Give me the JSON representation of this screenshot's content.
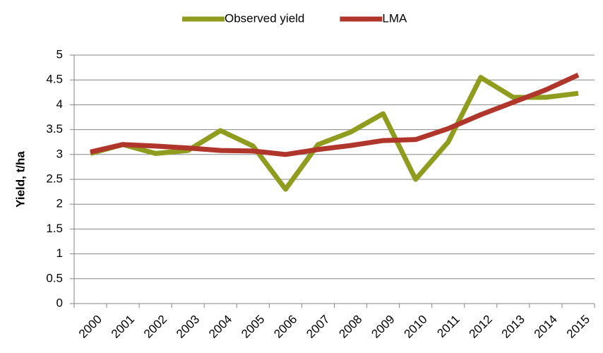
{
  "chart_data": {
    "type": "line",
    "y_label": "Yield, t/ha",
    "categories": [
      "2000",
      "2001",
      "2002",
      "2003",
      "2004",
      "2005",
      "2006",
      "2007",
      "2008",
      "2009",
      "2010",
      "2011",
      "2012",
      "2013",
      "2014",
      "2015"
    ],
    "series": [
      {
        "name": "Observed yield",
        "color": "#8f9c1e",
        "values": [
          3.02,
          3.2,
          3.02,
          3.08,
          3.48,
          3.17,
          2.3,
          3.2,
          3.45,
          3.82,
          2.5,
          3.25,
          4.55,
          4.15,
          4.15,
          4.23
        ]
      },
      {
        "name": "LMA",
        "color": "#b0352a",
        "values": [
          3.05,
          3.2,
          3.17,
          3.13,
          3.08,
          3.07,
          3.0,
          3.1,
          3.18,
          3.28,
          3.3,
          3.52,
          3.8,
          4.05,
          4.3,
          4.6
        ]
      }
    ],
    "ylim": [
      0,
      5
    ],
    "yticks": [
      0,
      0.5,
      1,
      1.5,
      2,
      2.5,
      3,
      3.5,
      4,
      4.5,
      5
    ],
    "grid": true,
    "legend": "top"
  }
}
